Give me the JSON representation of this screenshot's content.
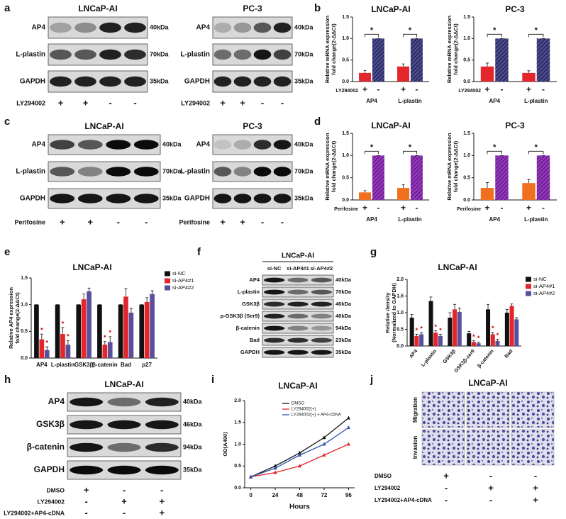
{
  "panel_labels": [
    "a",
    "b",
    "c",
    "d",
    "e",
    "f",
    "g",
    "h",
    "i",
    "j"
  ],
  "blots": [
    {
      "title": "LNCaP-AI",
      "rows": [
        {
          "label": "AP4",
          "size": "40kDa"
        },
        {
          "label": "L-plastin",
          "size": "70kDa"
        },
        {
          "label": "GAPDH",
          "size": "35kDa"
        }
      ],
      "treatments": [
        {
          "label": "LY294002",
          "signs": [
            "+",
            "+",
            "-",
            "-"
          ]
        }
      ]
    },
    {
      "title": "PC-3",
      "rows": [
        {
          "label": "AP4",
          "size": "40kDa"
        },
        {
          "label": "L-plastin",
          "size": "70kDa"
        },
        {
          "label": "GAPDH",
          "size": "35kDa"
        }
      ],
      "treatments": [
        {
          "label": "LY294002",
          "signs": [
            "+",
            "+",
            "-",
            "-"
          ]
        }
      ]
    },
    {
      "title": "LNCaP-AI",
      "rows": [
        {
          "label": "AP4",
          "size": "40kDa"
        },
        {
          "label": "L-plastin",
          "size": "70kDa"
        },
        {
          "label": "GAPDH",
          "size": "35kDa"
        }
      ],
      "treatments": [
        {
          "label": "Perifosine",
          "signs": [
            "+",
            "+",
            "-",
            "-"
          ]
        }
      ]
    },
    {
      "title": "PC-3",
      "rows": [
        {
          "label": "AP4",
          "size": "40kDa"
        },
        {
          "label": "L-plastin",
          "size": "70kDa"
        },
        {
          "label": "GAPDH",
          "size": "35kDa"
        }
      ],
      "treatments": [
        {
          "label": "Perifosine",
          "signs": [
            "+",
            "+",
            "-",
            "-"
          ]
        }
      ]
    },
    {
      "title": "LNCaP-AI",
      "lanes": [
        "si-NC",
        "si-AP4#1",
        "si-AP4#2"
      ],
      "rows": [
        {
          "label": "AP4",
          "size": "40kDa"
        },
        {
          "label": "L-plastin",
          "size": "70kDa"
        },
        {
          "label": "GSK3β",
          "size": "46kDa"
        },
        {
          "label": "p-GSK3β (Ser9)",
          "size": "46kDa"
        },
        {
          "label": "β-catenin",
          "size": "94kDa"
        },
        {
          "label": "Bad",
          "size": "23kDa"
        },
        {
          "label": "GAPDH",
          "size": "35kDa"
        }
      ]
    },
    {
      "title": "LNCaP-AI",
      "rows": [
        {
          "label": "AP4",
          "size": "40kDa"
        },
        {
          "label": "GSK3β",
          "size": "46kDa"
        },
        {
          "label": "β-catenin",
          "size": "94kDa"
        },
        {
          "label": "GAPDH",
          "size": "35kDa"
        }
      ],
      "treatments": [
        {
          "label": "DMSO",
          "signs": [
            "+",
            "-",
            "-"
          ]
        },
        {
          "label": "LY294002",
          "signs": [
            "-",
            "+",
            "+"
          ]
        },
        {
          "label": "LY294002+AP4-cDNA",
          "signs": [
            "-",
            "-",
            "+"
          ]
        }
      ]
    }
  ],
  "images": {
    "title": "LNCaP-AI",
    "rows": [
      "Migration",
      "Invasion"
    ],
    "treatments": [
      {
        "label": "DMSO",
        "signs": [
          "+",
          "-",
          "-"
        ]
      },
      {
        "label": "LY294002",
        "signs": [
          "-",
          "+",
          "+"
        ]
      },
      {
        "label": "LY294002+AP4-cDNA",
        "signs": [
          "-",
          "-",
          "+"
        ]
      }
    ]
  },
  "chart_data": [
    {
      "type": "bar",
      "title": "LNCaP-AI",
      "y_label": [
        "Relative mRNA expression",
        "fold change(2-ΔΔCt)"
      ],
      "treatment_label": "LY294002",
      "categories": [
        "AP4",
        "L-plastin"
      ],
      "series": [
        {
          "name": "+",
          "color": "#e3262b",
          "values": [
            0.2,
            0.35
          ],
          "errors": [
            0.06,
            0.06
          ]
        },
        {
          "name": "-",
          "color": "#2f3070",
          "hatch": true,
          "values": [
            1.0,
            1.0
          ],
          "errors": [
            0,
            0
          ]
        }
      ],
      "ylim": [
        0,
        1.5
      ],
      "yticks": [
        {
          "value": 0,
          "label": "0.0"
        },
        {
          "value": 0.5,
          "label": "0.5"
        },
        {
          "value": 1,
          "label": "1.0"
        },
        {
          "value": 1.5,
          "label": "1.5"
        }
      ],
      "significance": "*"
    },
    {
      "type": "bar",
      "title": "PC-3",
      "y_label": [
        "Relative mRNA expression",
        "fold change(2-ΔΔCt)"
      ],
      "treatment_label": "LY294002",
      "categories": [
        "AP4",
        "L-plastin"
      ],
      "series": [
        {
          "name": "+",
          "color": "#e3262b",
          "values": [
            0.35,
            0.2
          ],
          "errors": [
            0.08,
            0.05
          ]
        },
        {
          "name": "-",
          "color": "#2f3070",
          "hatch": true,
          "values": [
            1.0,
            1.0
          ],
          "errors": [
            0,
            0
          ]
        }
      ],
      "ylim": [
        0,
        1.5
      ],
      "yticks": [
        {
          "value": 0,
          "label": "0.0"
        },
        {
          "value": 0.5,
          "label": "0.5"
        },
        {
          "value": 1,
          "label": "1.0"
        },
        {
          "value": 1.5,
          "label": "1.5"
        }
      ],
      "significance": "*"
    },
    {
      "type": "bar",
      "title": "LNCaP-AI",
      "y_label": [
        "Relative mRNA expression",
        "fold change(2-ΔΔCt)"
      ],
      "treatment_label": "Perifosine",
      "categories": [
        "AP4",
        "L-plastin"
      ],
      "series": [
        {
          "name": "+",
          "color": "#f07020",
          "values": [
            0.17,
            0.27
          ],
          "errors": [
            0.04,
            0.07
          ]
        },
        {
          "name": "-",
          "color": "#7a1fa2",
          "hatch": true,
          "values": [
            1.0,
            1.0
          ],
          "errors": [
            0,
            0
          ]
        }
      ],
      "ylim": [
        0,
        1.5
      ],
      "yticks": [
        {
          "value": 0,
          "label": "0.0"
        },
        {
          "value": 0.5,
          "label": "0.5"
        },
        {
          "value": 1,
          "label": "1.0"
        },
        {
          "value": 1.5,
          "label": "1.5"
        }
      ],
      "significance": "*"
    },
    {
      "type": "bar",
      "title": "PC-3",
      "y_label": [
        "Relative mRNA expression",
        "fold change(2-ΔΔCt)"
      ],
      "treatment_label": "Perifosine",
      "categories": [
        "AP4",
        "L-plastin"
      ],
      "series": [
        {
          "name": "+",
          "color": "#f07020",
          "values": [
            0.27,
            0.38
          ],
          "errors": [
            0.12,
            0.08
          ]
        },
        {
          "name": "-",
          "color": "#7a1fa2",
          "hatch": true,
          "values": [
            1.0,
            1.0
          ],
          "errors": [
            0,
            0
          ]
        }
      ],
      "ylim": [
        0,
        1.5
      ],
      "yticks": [
        {
          "value": 0,
          "label": "0.0"
        },
        {
          "value": 0.5,
          "label": "0.5"
        },
        {
          "value": 1,
          "label": "1.0"
        },
        {
          "value": 1.5,
          "label": "1.5"
        }
      ],
      "significance": "*"
    },
    {
      "type": "bar",
      "title": "LNCaP-AI",
      "y_label": [
        "Relative AP4 expression",
        "fold change(2-ΔΔCt)"
      ],
      "categories": [
        "AP4",
        "L-plastin",
        "GSK3β",
        "β-catenin",
        "Bad",
        "p27"
      ],
      "series": [
        {
          "name": "si-NC",
          "color": "#111111",
          "values": [
            1,
            1,
            1,
            1,
            1,
            1
          ],
          "errors": [
            0,
            0,
            0,
            0,
            0,
            0
          ]
        },
        {
          "name": "si-AP4#1",
          "color": "#e3262b",
          "values": [
            0.35,
            0.45,
            1.1,
            0.25,
            1.15,
            1.05
          ],
          "errors": [
            0.1,
            0.12,
            0.1,
            0.06,
            0.15,
            0.08
          ]
        },
        {
          "name": "si-AP4#2",
          "color": "#5a4f9a",
          "values": [
            0.15,
            0.25,
            1.25,
            0.3,
            0.85,
            1.2
          ],
          "errors": [
            0.06,
            0.08,
            0.06,
            0.1,
            0.08,
            0.06
          ]
        }
      ],
      "ylim": [
        0,
        1.5
      ],
      "yticks": [
        {
          "value": 0,
          "label": "0.0"
        },
        {
          "value": 0.5,
          "label": "0.5"
        },
        {
          "value": 1,
          "label": "1.0"
        },
        {
          "value": 1.5,
          "label": "1.5"
        }
      ],
      "annotations": [
        {
          "text": "*",
          "at": "AP4"
        },
        {
          "text": "*",
          "at": "L-plastin"
        },
        {
          "text": "*",
          "at": "β-catenin"
        }
      ]
    },
    {
      "type": "bar",
      "title": "LNCaP-AI",
      "y_label": [
        "Relative density",
        "(Normalized to GAPDH)"
      ],
      "categories": [
        "AP4",
        "L-plastin",
        "GSK3β",
        "GSK3β-ser9",
        "β-catenin",
        "Bad"
      ],
      "series": [
        {
          "name": "si-NC",
          "color": "#111111",
          "values": [
            0.85,
            1.35,
            0.85,
            0.38,
            1.1,
            1.0
          ],
          "errors": [
            0.1,
            0.12,
            0.15,
            0.06,
            0.15,
            0.1
          ]
        },
        {
          "name": "si-AP4#1",
          "color": "#e3262b",
          "values": [
            0.3,
            0.4,
            1.1,
            0.12,
            0.35,
            1.2
          ],
          "errors": [
            0.05,
            0.06,
            0.15,
            0.04,
            0.06,
            0.06
          ]
        },
        {
          "name": "si-AP4#2",
          "color": "#5a4f9a",
          "values": [
            0.35,
            0.3,
            1.02,
            0.08,
            0.15,
            0.8
          ],
          "errors": [
            0.05,
            0.05,
            0.12,
            0.03,
            0.05,
            0.05
          ]
        }
      ],
      "ylim": [
        0,
        2
      ],
      "yticks": [
        {
          "value": 0,
          "label": "0.0"
        },
        {
          "value": 0.5,
          "label": "0.5"
        },
        {
          "value": 1,
          "label": "1.0"
        },
        {
          "value": 1.5,
          "label": "1.5"
        },
        {
          "value": 2,
          "label": "2.0"
        }
      ],
      "annotations": [
        {
          "text": "*",
          "at": "AP4"
        },
        {
          "text": "*",
          "at": "L-plastin"
        },
        {
          "text": "*",
          "at": "GSK3β-ser9"
        },
        {
          "text": "*",
          "at": "β-catenin"
        }
      ]
    },
    {
      "type": "line",
      "title": "LNCaP-AI",
      "x_label": "Hours",
      "y_label": "OD(A490)",
      "x": [
        0,
        24,
        48,
        72,
        96
      ],
      "xlim": [
        -6,
        102
      ],
      "xticks": [
        0,
        24,
        48,
        72,
        96
      ],
      "ylim": [
        0,
        2
      ],
      "yticks": [
        {
          "value": 0,
          "label": "0.0"
        },
        {
          "value": 0.5,
          "label": "0.5"
        },
        {
          "value": 1,
          "label": "1.0"
        },
        {
          "value": 1.5,
          "label": "1.5"
        },
        {
          "value": 2,
          "label": "2.0"
        }
      ],
      "series": [
        {
          "name": "DMSO",
          "color": "#111111",
          "values": [
            0.25,
            0.5,
            0.8,
            1.15,
            1.6
          ]
        },
        {
          "name": "LY294002(+)",
          "color": "#e3262b",
          "values": [
            0.25,
            0.35,
            0.5,
            0.75,
            1.0
          ]
        },
        {
          "name": "LY294002(+) + AP4-cDNA",
          "color": "#3050b0",
          "values": [
            0.25,
            0.45,
            0.75,
            1.0,
            1.38
          ]
        }
      ]
    }
  ]
}
